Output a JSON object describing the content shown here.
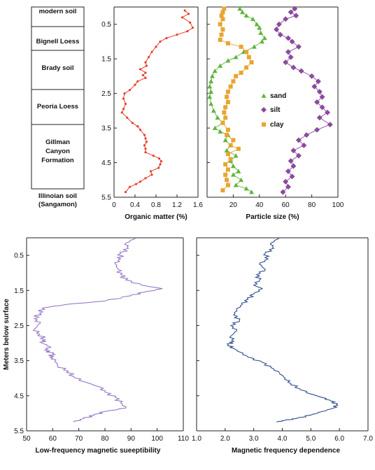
{
  "chart_data": [
    {
      "type": "table",
      "units": [
        {
          "name": "modern soil",
          "top": 0.0,
          "bottom": 0.6
        },
        {
          "name": "Bignell Loess",
          "top": 0.6,
          "bottom": 1.15
        },
        {
          "name": "Brady soil",
          "top": 1.15,
          "bottom": 2.05
        },
        {
          "name": "Peoria Loess",
          "top": 2.05,
          "bottom": 3.4
        },
        {
          "name": "Gillman Canyon Formation",
          "top": 3.4,
          "bottom": 5.32
        },
        {
          "name": "Illinoian soil (Sangamon)",
          "top": 5.32,
          "bottom": 5.5
        }
      ]
    },
    {
      "type": "line",
      "xlabel": "Organic matter (%)",
      "xlim": [
        0,
        1.6
      ],
      "xticks": [
        "0",
        "0.4",
        "0.8",
        "1.2",
        "1.6"
      ],
      "ylim": [
        0,
        5.5
      ],
      "yticks": [
        "0.5",
        "1.5",
        "2.5",
        "3.5",
        "4.5",
        "5.5"
      ],
      "color": "#e8412c",
      "series": [
        {
          "points": [
            [
              1.35,
              0.1
            ],
            [
              1.42,
              0.2
            ],
            [
              1.3,
              0.3
            ],
            [
              1.45,
              0.45
            ],
            [
              1.5,
              0.6
            ],
            [
              1.4,
              0.7
            ],
            [
              1.2,
              0.8
            ],
            [
              1.0,
              0.9
            ],
            [
              0.88,
              1.0
            ],
            [
              0.8,
              1.15
            ],
            [
              0.72,
              1.3
            ],
            [
              0.66,
              1.45
            ],
            [
              0.6,
              1.6
            ],
            [
              0.62,
              1.7
            ],
            [
              0.5,
              1.8
            ],
            [
              0.6,
              1.9
            ],
            [
              0.55,
              1.97
            ],
            [
              0.6,
              2.05
            ],
            [
              0.45,
              2.15
            ],
            [
              0.4,
              2.25
            ],
            [
              0.3,
              2.4
            ],
            [
              0.2,
              2.5
            ],
            [
              0.18,
              2.65
            ],
            [
              0.22,
              2.8
            ],
            [
              0.18,
              2.95
            ],
            [
              0.15,
              3.05
            ],
            [
              0.25,
              3.2
            ],
            [
              0.35,
              3.35
            ],
            [
              0.45,
              3.45
            ],
            [
              0.5,
              3.55
            ],
            [
              0.58,
              3.7
            ],
            [
              0.6,
              3.8
            ],
            [
              0.62,
              3.9
            ],
            [
              0.58,
              4.0
            ],
            [
              0.6,
              4.1
            ],
            [
              0.6,
              4.2
            ],
            [
              0.75,
              4.3
            ],
            [
              0.86,
              4.38
            ],
            [
              0.9,
              4.46
            ],
            [
              0.88,
              4.55
            ],
            [
              0.85,
              4.65
            ],
            [
              0.7,
              4.75
            ],
            [
              0.72,
              4.85
            ],
            [
              0.6,
              4.95
            ],
            [
              0.5,
              5.05
            ],
            [
              0.42,
              5.12
            ],
            [
              0.3,
              5.2
            ],
            [
              0.22,
              5.35
            ]
          ]
        }
      ]
    },
    {
      "type": "scatter",
      "xlabel": "Particle size (%)",
      "xlim": [
        0,
        100
      ],
      "xticks": [
        "20",
        "40",
        "60",
        "80",
        "100"
      ],
      "ylim": [
        0,
        5.5
      ],
      "series": [
        {
          "name": "sand",
          "color": "#5fb53a",
          "marker": "triangle",
          "points": [
            [
              25,
              0.05
            ],
            [
              27,
              0.15
            ],
            [
              30,
              0.25
            ],
            [
              35,
              0.35
            ],
            [
              38,
              0.5
            ],
            [
              40,
              0.6
            ],
            [
              41,
              0.75
            ],
            [
              44,
              0.9
            ],
            [
              42,
              1.0
            ],
            [
              36,
              1.15
            ],
            [
              28,
              1.3
            ],
            [
              22,
              1.45
            ],
            [
              16,
              1.55
            ],
            [
              10,
              1.7
            ],
            [
              6,
              1.85
            ],
            [
              4,
              2.0
            ],
            [
              3,
              2.15
            ],
            [
              2,
              2.3
            ],
            [
              3,
              2.45
            ],
            [
              2,
              2.6
            ],
            [
              3,
              2.8
            ],
            [
              5,
              3.0
            ],
            [
              8,
              3.2
            ],
            [
              12,
              3.35
            ],
            [
              6,
              3.5
            ],
            [
              10,
              3.6
            ],
            [
              16,
              3.7
            ],
            [
              14,
              3.85
            ],
            [
              18,
              4.0
            ],
            [
              15,
              4.15
            ],
            [
              22,
              4.3
            ],
            [
              18,
              4.45
            ],
            [
              20,
              4.6
            ],
            [
              24,
              4.75
            ],
            [
              20,
              4.85
            ],
            [
              26,
              5.0
            ],
            [
              22,
              5.15
            ],
            [
              30,
              5.25
            ],
            [
              34,
              5.35
            ]
          ]
        },
        {
          "name": "silt",
          "color": "#8b4a9c",
          "marker": "diamond",
          "points": [
            [
              67,
              0.05
            ],
            [
              64,
              0.15
            ],
            [
              68,
              0.25
            ],
            [
              60,
              0.35
            ],
            [
              55,
              0.5
            ],
            [
              53,
              0.65
            ],
            [
              56,
              0.8
            ],
            [
              62,
              0.9
            ],
            [
              65,
              1.0
            ],
            [
              70,
              1.15
            ],
            [
              62,
              1.3
            ],
            [
              64,
              1.45
            ],
            [
              60,
              1.6
            ],
            [
              66,
              1.75
            ],
            [
              72,
              1.85
            ],
            [
              80,
              2.0
            ],
            [
              85,
              2.15
            ],
            [
              82,
              2.3
            ],
            [
              86,
              2.45
            ],
            [
              88,
              2.6
            ],
            [
              84,
              2.75
            ],
            [
              88,
              2.9
            ],
            [
              92,
              3.05
            ],
            [
              86,
              3.2
            ],
            [
              94,
              3.4
            ],
            [
              84,
              3.55
            ],
            [
              76,
              3.7
            ],
            [
              70,
              3.85
            ],
            [
              74,
              4.0
            ],
            [
              66,
              4.15
            ],
            [
              70,
              4.3
            ],
            [
              64,
              4.45
            ],
            [
              66,
              4.6
            ],
            [
              62,
              4.75
            ],
            [
              65,
              4.9
            ],
            [
              60,
              5.05
            ],
            [
              62,
              5.2
            ],
            [
              58,
              5.35
            ]
          ]
        },
        {
          "name": "clay",
          "color": "#e8a530",
          "marker": "square",
          "points": [
            [
              13,
              0.05
            ],
            [
              12,
              0.15
            ],
            [
              11,
              0.25
            ],
            [
              12,
              0.35
            ],
            [
              10,
              0.5
            ],
            [
              12,
              0.65
            ],
            [
              11,
              0.8
            ],
            [
              10,
              0.95
            ],
            [
              16,
              1.05
            ],
            [
              26,
              1.15
            ],
            [
              30,
              1.3
            ],
            [
              32,
              1.45
            ],
            [
              34,
              1.6
            ],
            [
              30,
              1.75
            ],
            [
              26,
              1.9
            ],
            [
              22,
              2.0
            ],
            [
              20,
              2.15
            ],
            [
              18,
              2.3
            ],
            [
              16,
              2.45
            ],
            [
              15,
              2.6
            ],
            [
              16,
              2.75
            ],
            [
              14,
              2.9
            ],
            [
              13,
              3.05
            ],
            [
              14,
              3.2
            ],
            [
              12,
              3.35
            ],
            [
              16,
              3.55
            ],
            [
              15,
              3.7
            ],
            [
              20,
              3.85
            ],
            [
              18,
              4.0
            ],
            [
              24,
              4.1
            ],
            [
              16,
              4.25
            ],
            [
              18,
              4.4
            ],
            [
              14,
              4.55
            ],
            [
              16,
              4.7
            ],
            [
              14,
              4.85
            ],
            [
              15,
              5.0
            ],
            [
              16,
              5.15
            ],
            [
              12,
              5.3
            ]
          ]
        }
      ]
    },
    {
      "type": "line",
      "xlabel": "Low-frequency magnetic sueeptibility",
      "ylabel": "Meters below surface",
      "xlim": [
        50,
        110
      ],
      "xticks": [
        "50",
        "60",
        "70",
        "80",
        "90",
        "100",
        "110"
      ],
      "ylim": [
        0,
        5.5
      ],
      "yticks": [
        "0.5",
        "1.5",
        "2.5",
        "3.5",
        "4.5",
        "5.5"
      ],
      "color": "#8e6cc1",
      "series": [
        {
          "points": [
            [
              92,
              0.0
            ],
            [
              88,
              0.15
            ],
            [
              89,
              0.3
            ],
            [
              86,
              0.45
            ],
            [
              86,
              0.6
            ],
            [
              84,
              0.75
            ],
            [
              85,
              0.9
            ],
            [
              86,
              1.05
            ],
            [
              88,
              1.2
            ],
            [
              94,
              1.35
            ],
            [
              102,
              1.45
            ],
            [
              95,
              1.55
            ],
            [
              90,
              1.65
            ],
            [
              80,
              1.8
            ],
            [
              65,
              1.9
            ],
            [
              56,
              2.0
            ],
            [
              55,
              2.15
            ],
            [
              53,
              2.3
            ],
            [
              55,
              2.45
            ],
            [
              53,
              2.6
            ],
            [
              55,
              2.75
            ],
            [
              57,
              2.9
            ],
            [
              56,
              3.0
            ],
            [
              59,
              3.1
            ],
            [
              57,
              3.2
            ],
            [
              60,
              3.3
            ],
            [
              59,
              3.4
            ],
            [
              61,
              3.5
            ],
            [
              62,
              3.65
            ],
            [
              66,
              3.8
            ],
            [
              68,
              3.95
            ],
            [
              72,
              4.1
            ],
            [
              78,
              4.25
            ],
            [
              80,
              4.4
            ],
            [
              84,
              4.55
            ],
            [
              86,
              4.7
            ],
            [
              88,
              4.85
            ],
            [
              80,
              4.95
            ],
            [
              76,
              5.05
            ],
            [
              72,
              5.15
            ],
            [
              68,
              5.25
            ]
          ]
        }
      ]
    },
    {
      "type": "line",
      "xlabel": "Magnetic frequency dependence",
      "xlim": [
        1.0,
        7.0
      ],
      "xticks": [
        "1.0",
        "2.0",
        "3.0",
        "4.0",
        "5.0",
        "6.0",
        "7.0"
      ],
      "ylim": [
        0,
        5.5
      ],
      "color": "#2f4d8f",
      "series": [
        {
          "points": [
            [
              3.9,
              0.0
            ],
            [
              3.6,
              0.15
            ],
            [
              3.7,
              0.3
            ],
            [
              3.4,
              0.45
            ],
            [
              3.5,
              0.6
            ],
            [
              3.2,
              0.75
            ],
            [
              3.4,
              0.9
            ],
            [
              3.1,
              1.05
            ],
            [
              3.2,
              1.2
            ],
            [
              3.0,
              1.35
            ],
            [
              3.3,
              1.45
            ],
            [
              3.0,
              1.6
            ],
            [
              2.8,
              1.75
            ],
            [
              2.6,
              1.9
            ],
            [
              2.4,
              2.05
            ],
            [
              2.3,
              2.2
            ],
            [
              2.5,
              2.35
            ],
            [
              2.2,
              2.5
            ],
            [
              2.4,
              2.65
            ],
            [
              2.2,
              2.8
            ],
            [
              2.3,
              2.95
            ],
            [
              2.1,
              3.05
            ],
            [
              2.3,
              3.15
            ],
            [
              2.5,
              3.25
            ],
            [
              2.8,
              3.4
            ],
            [
              3.3,
              3.55
            ],
            [
              3.6,
              3.7
            ],
            [
              3.9,
              3.85
            ],
            [
              4.1,
              4.0
            ],
            [
              4.3,
              4.15
            ],
            [
              4.6,
              4.3
            ],
            [
              5.0,
              4.45
            ],
            [
              5.4,
              4.55
            ],
            [
              5.7,
              4.65
            ],
            [
              5.9,
              4.75
            ],
            [
              5.8,
              4.85
            ],
            [
              5.4,
              4.95
            ],
            [
              5.0,
              5.05
            ],
            [
              4.5,
              5.15
            ],
            [
              4.1,
              5.2
            ],
            [
              3.8,
              5.25
            ]
          ]
        }
      ]
    }
  ]
}
